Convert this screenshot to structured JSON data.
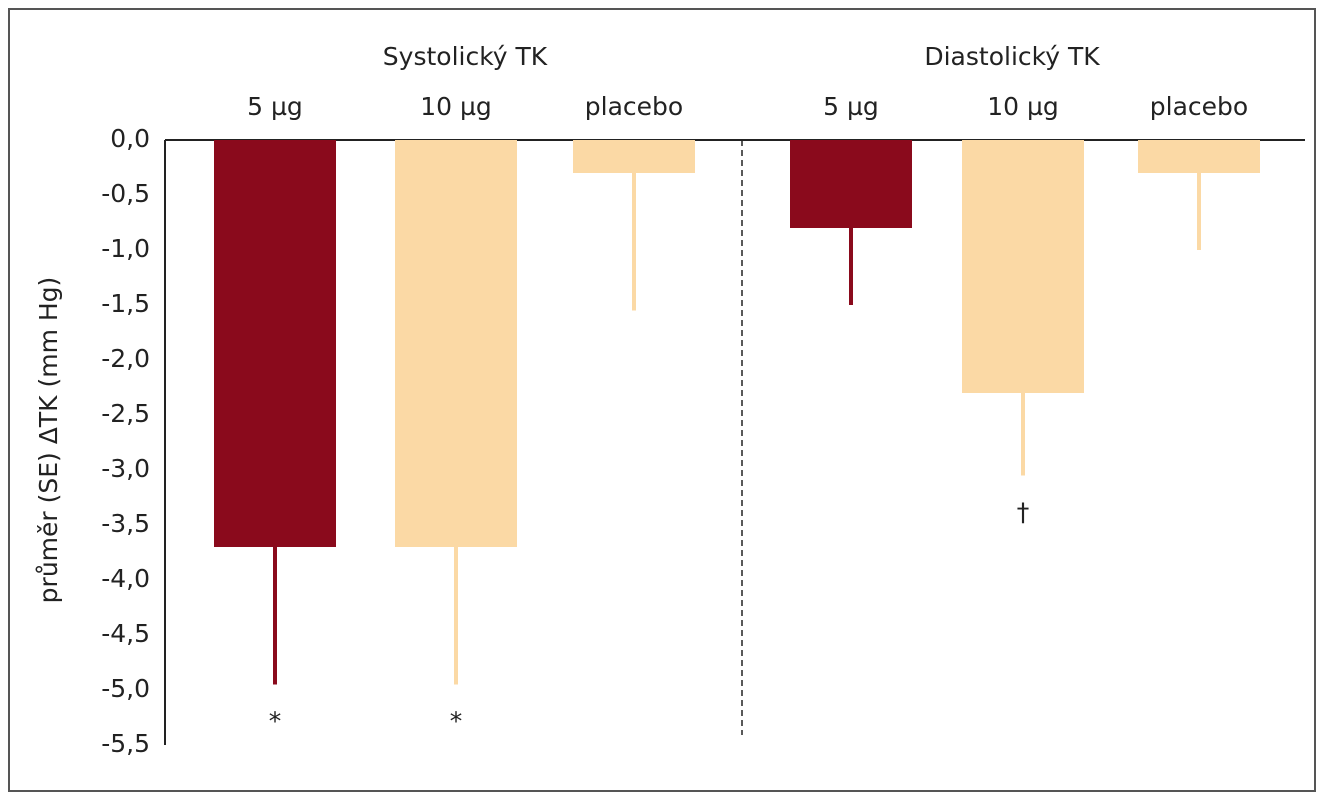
{
  "chart_data": {
    "type": "bar",
    "y_label": "průměr (SE) ΔTK (mm Hg)",
    "ylim": [
      -5.5,
      0
    ],
    "yticks": [
      {
        "value": 0,
        "label": "0,0"
      },
      {
        "value": -0.5,
        "label": "-0,5"
      },
      {
        "value": -1,
        "label": "-1,0"
      },
      {
        "value": -1.5,
        "label": "-1,5"
      },
      {
        "value": -2,
        "label": "-2,0"
      },
      {
        "value": -2.5,
        "label": "-2,5"
      },
      {
        "value": -3,
        "label": "-3,0"
      },
      {
        "value": -3.5,
        "label": "-3,5"
      },
      {
        "value": -4,
        "label": "-4,0"
      },
      {
        "value": -4.5,
        "label": "-4,5"
      },
      {
        "value": -5,
        "label": "-5,0"
      },
      {
        "value": -5.5,
        "label": "-5,5"
      }
    ],
    "grid": false,
    "groups": [
      {
        "name": "Systolický TK",
        "categories": [
          "5 µg",
          "10 µg",
          "placebo"
        ],
        "colors": [
          "#8a0a1c",
          "#fbd9a5",
          "#fbd9a5"
        ],
        "values": [
          -3.7,
          -3.7,
          -0.3
        ],
        "errors": [
          1.25,
          1.25,
          1.25
        ],
        "annotations": [
          "*",
          "*",
          null
        ]
      },
      {
        "name": "Diastolický TK",
        "categories": [
          "5 µg",
          "10 µg",
          "placebo"
        ],
        "colors": [
          "#8a0a1c",
          "#fbd9a5",
          "#fbd9a5"
        ],
        "values": [
          -0.8,
          -2.3,
          -0.3
        ],
        "errors": [
          0.7,
          0.75,
          0.7
        ],
        "annotations": [
          null,
          "†",
          null
        ]
      }
    ]
  }
}
